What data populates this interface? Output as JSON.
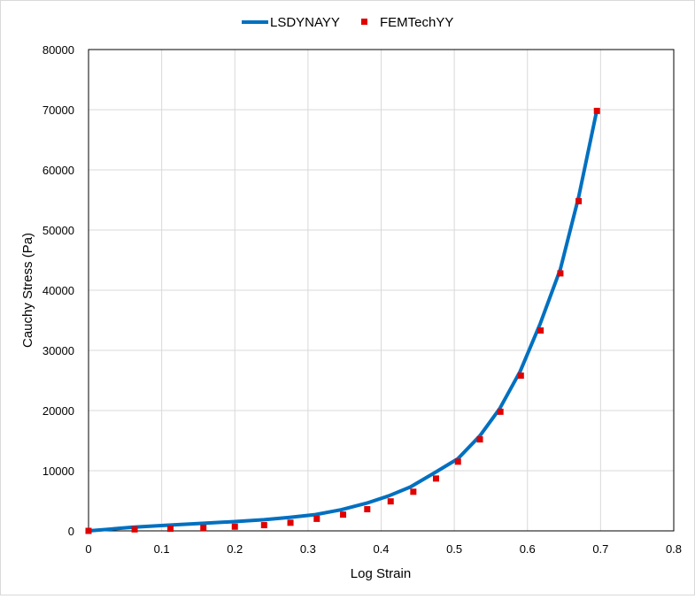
{
  "chart_data": {
    "type": "line",
    "xlabel": "Log Strain",
    "ylabel": "Cauchy Stress (Pa)",
    "xlim": [
      0,
      0.8
    ],
    "ylim": [
      0,
      80000
    ],
    "xticks": [
      "0",
      "0.1",
      "0.2",
      "0.3",
      "0.4",
      "0.5",
      "0.6",
      "0.7",
      "0.8"
    ],
    "yticks": [
      "0",
      "10000",
      "20000",
      "30000",
      "40000",
      "50000",
      "60000",
      "70000",
      "80000"
    ],
    "xtick_values": [
      0,
      0.1,
      0.2,
      0.3,
      0.4,
      0.5,
      0.6,
      0.7,
      0.8
    ],
    "ytick_values": [
      0,
      10000,
      20000,
      30000,
      40000,
      50000,
      60000,
      70000,
      80000
    ],
    "grid": true,
    "legend_position": "top-center",
    "series": [
      {
        "name": "LSDYNAYY",
        "style": "line",
        "color": "#0070c0",
        "x": [
          0,
          0.06,
          0.11,
          0.155,
          0.2,
          0.24,
          0.275,
          0.31,
          0.345,
          0.38,
          0.41,
          0.44,
          0.475,
          0.505,
          0.535,
          0.562,
          0.59,
          0.617,
          0.645,
          0.67,
          0.695
        ],
        "y": [
          0,
          600,
          950,
          1250,
          1550,
          1850,
          2250,
          2700,
          3500,
          4600,
          5800,
          7300,
          9800,
          12000,
          15800,
          20300,
          26500,
          34300,
          43500,
          55500,
          70000
        ]
      },
      {
        "name": "FEMTechYY",
        "style": "marker",
        "color": "#e00000",
        "x": [
          0,
          0.063,
          0.112,
          0.157,
          0.2,
          0.24,
          0.276,
          0.312,
          0.348,
          0.381,
          0.413,
          0.444,
          0.475,
          0.505,
          0.535,
          0.563,
          0.591,
          0.618,
          0.645,
          0.67,
          0.695
        ],
        "y": [
          0,
          250,
          350,
          500,
          700,
          950,
          1350,
          2000,
          2700,
          3600,
          4900,
          6500,
          8700,
          11500,
          15200,
          19800,
          25800,
          33300,
          42800,
          54800,
          69800
        ]
      }
    ]
  }
}
